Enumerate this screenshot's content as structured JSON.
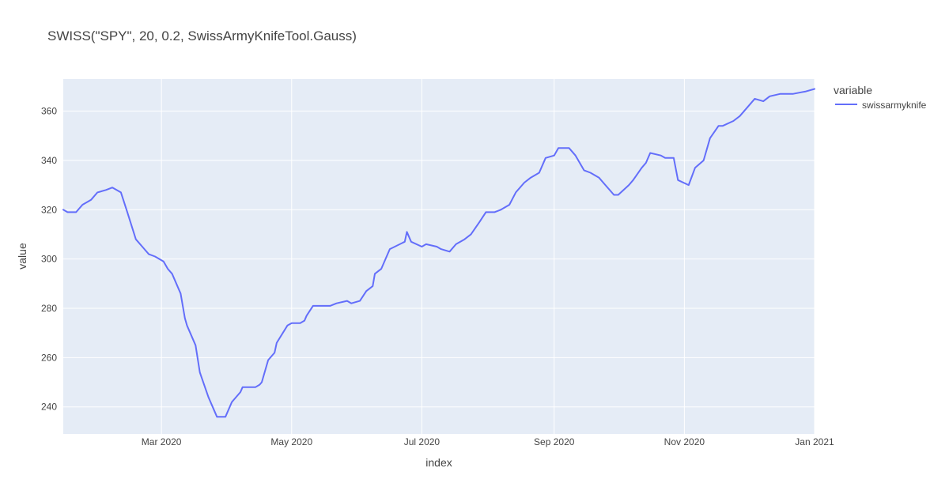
{
  "chart_data": {
    "type": "line",
    "title": "SWISS(\"SPY\", 20, 0.2, SwissArmyKnifeTool.Gauss)",
    "xlabel": "index",
    "ylabel": "value",
    "legend_title": "variable",
    "legend_position": "top-right",
    "grid": true,
    "xlim": [
      "2020-01-15",
      "2021-01-01"
    ],
    "ylim": [
      229,
      373
    ],
    "x_ticks": [
      {
        "date": "2020-03-01",
        "label": "Mar 2020"
      },
      {
        "date": "2020-05-01",
        "label": "May 2020"
      },
      {
        "date": "2020-07-01",
        "label": "Jul 2020"
      },
      {
        "date": "2020-09-01",
        "label": "Sep 2020"
      },
      {
        "date": "2020-11-01",
        "label": "Nov 2020"
      },
      {
        "date": "2021-01-01",
        "label": "Jan 2021"
      }
    ],
    "y_ticks": [
      240,
      260,
      280,
      300,
      320,
      340,
      360
    ],
    "series": [
      {
        "name": "swissarmyknife",
        "color": "#636efa",
        "x": [
          "2020-01-15",
          "2020-01-17",
          "2020-01-21",
          "2020-01-24",
          "2020-01-28",
          "2020-01-31",
          "2020-02-04",
          "2020-02-07",
          "2020-02-11",
          "2020-02-14",
          "2020-02-18",
          "2020-02-21",
          "2020-02-24",
          "2020-02-27",
          "2020-03-02",
          "2020-03-04",
          "2020-03-06",
          "2020-03-10",
          "2020-03-12",
          "2020-03-13",
          "2020-03-17",
          "2020-03-19",
          "2020-03-23",
          "2020-03-25",
          "2020-03-27",
          "2020-03-31",
          "2020-04-03",
          "2020-04-07",
          "2020-04-08",
          "2020-04-10",
          "2020-04-14",
          "2020-04-16",
          "2020-04-17",
          "2020-04-20",
          "2020-04-23",
          "2020-04-24",
          "2020-04-29",
          "2020-05-01",
          "2020-05-05",
          "2020-05-07",
          "2020-05-08",
          "2020-05-11",
          "2020-05-13",
          "2020-05-15",
          "2020-05-19",
          "2020-05-22",
          "2020-05-27",
          "2020-05-29",
          "2020-06-02",
          "2020-06-05",
          "2020-06-08",
          "2020-06-09",
          "2020-06-12",
          "2020-06-16",
          "2020-06-23",
          "2020-06-24",
          "2020-06-26",
          "2020-07-01",
          "2020-07-03",
          "2020-07-08",
          "2020-07-10",
          "2020-07-14",
          "2020-07-17",
          "2020-07-21",
          "2020-07-24",
          "2020-07-28",
          "2020-07-31",
          "2020-08-04",
          "2020-08-07",
          "2020-08-11",
          "2020-08-14",
          "2020-08-18",
          "2020-08-21",
          "2020-08-25",
          "2020-08-28",
          "2020-09-01",
          "2020-09-03",
          "2020-09-08",
          "2020-09-11",
          "2020-09-15",
          "2020-09-18",
          "2020-09-22",
          "2020-09-24",
          "2020-09-29",
          "2020-10-01",
          "2020-10-06",
          "2020-10-08",
          "2020-10-12",
          "2020-10-14",
          "2020-10-16",
          "2020-10-21",
          "2020-10-23",
          "2020-10-27",
          "2020-10-29",
          "2020-11-03",
          "2020-11-06",
          "2020-11-10",
          "2020-11-13",
          "2020-11-17",
          "2020-11-19",
          "2020-11-24",
          "2020-11-27",
          "2020-12-01",
          "2020-12-04",
          "2020-12-08",
          "2020-12-11",
          "2020-12-16",
          "2020-12-22",
          "2020-12-28",
          "2021-01-01"
        ],
        "y": [
          320,
          319,
          319,
          322,
          324,
          327,
          328,
          329,
          327,
          319,
          308,
          305,
          302,
          301,
          299,
          296,
          294,
          286,
          276,
          273,
          265,
          254,
          244,
          240,
          236,
          236,
          242,
          246,
          248,
          248,
          248,
          249,
          250,
          259,
          262,
          266,
          273,
          274,
          274,
          275,
          277,
          281,
          281,
          281,
          281,
          282,
          283,
          282,
          283,
          287,
          289,
          294,
          296,
          304,
          307,
          311,
          307,
          305,
          306,
          305,
          304,
          303,
          306,
          308,
          310,
          315,
          319,
          319,
          320,
          322,
          327,
          331,
          333,
          335,
          341,
          342,
          345,
          345,
          342,
          336,
          335,
          333,
          331,
          326,
          326,
          330,
          332,
          337,
          339,
          343,
          342,
          341,
          341,
          332,
          330,
          337,
          340,
          349,
          354,
          354,
          356,
          358,
          362,
          365,
          364,
          366,
          367,
          367,
          368,
          369
        ]
      }
    ]
  }
}
